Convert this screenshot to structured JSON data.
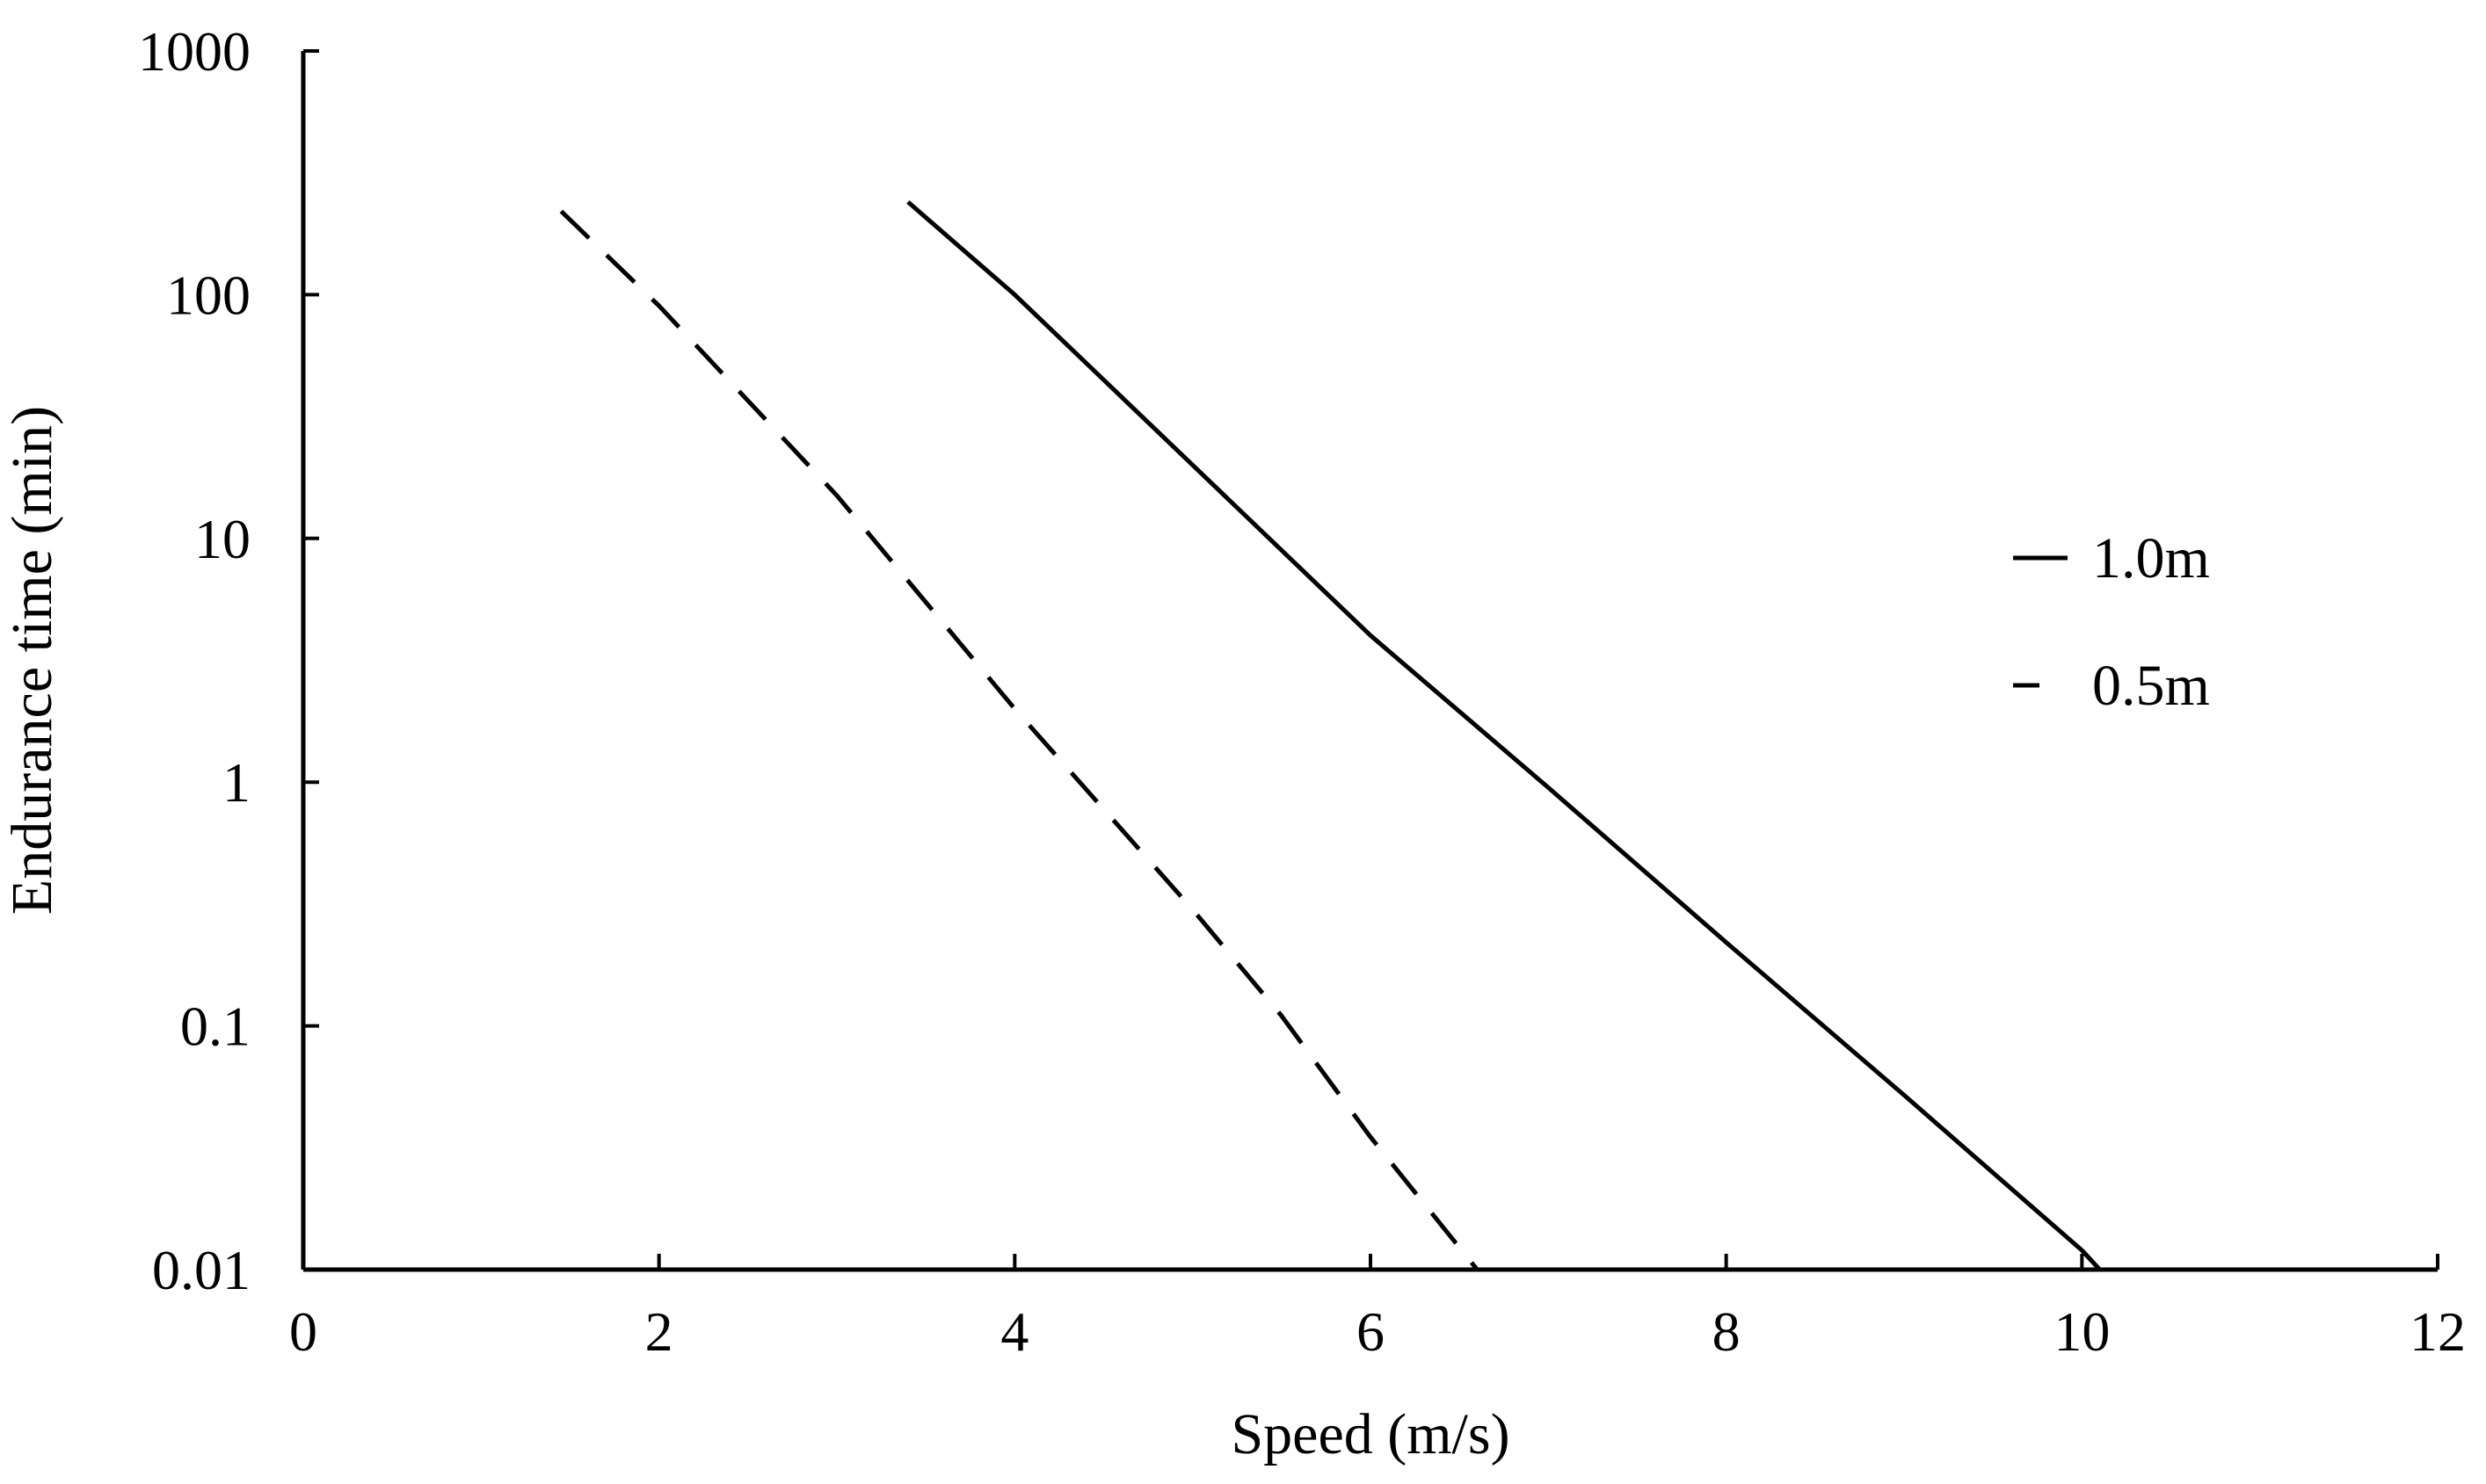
{
  "chart_data": {
    "type": "line",
    "xlabel": "Speed (m/s)",
    "ylabel": "Endurance time (min)",
    "xlim": [
      0,
      12
    ],
    "ylim": [
      0.01,
      1000
    ],
    "yscale": "log",
    "x_ticks": [
      "0",
      "2",
      "4",
      "6",
      "8",
      "10",
      "12"
    ],
    "y_ticks": [
      "0.01",
      "0.1",
      "1",
      "10",
      "100",
      "1000"
    ],
    "x_tick_values": [
      0,
      2,
      4,
      6,
      8,
      10,
      12
    ],
    "y_tick_values": [
      0.01,
      0.1,
      1,
      10,
      100,
      1000
    ],
    "grid": false,
    "legend_position": "right",
    "series": [
      {
        "name": "1.0m",
        "line_style": "solid",
        "color": "#000000",
        "x": [
          3.4,
          4.0,
          5.0,
          6.0,
          7.0,
          8.0,
          9.0,
          10.0,
          10.1
        ],
        "y": [
          240,
          100,
          20,
          4.0,
          0.95,
          0.22,
          0.052,
          0.012,
          0.01
        ]
      },
      {
        "name": "0.5m",
        "line_style": "dashed",
        "color": "#000000",
        "x": [
          1.45,
          2.0,
          3.0,
          4.0,
          5.0,
          5.5,
          6.0,
          6.6
        ],
        "y": [
          220,
          90,
          15,
          2.0,
          0.3,
          0.11,
          0.035,
          0.01
        ]
      }
    ]
  }
}
